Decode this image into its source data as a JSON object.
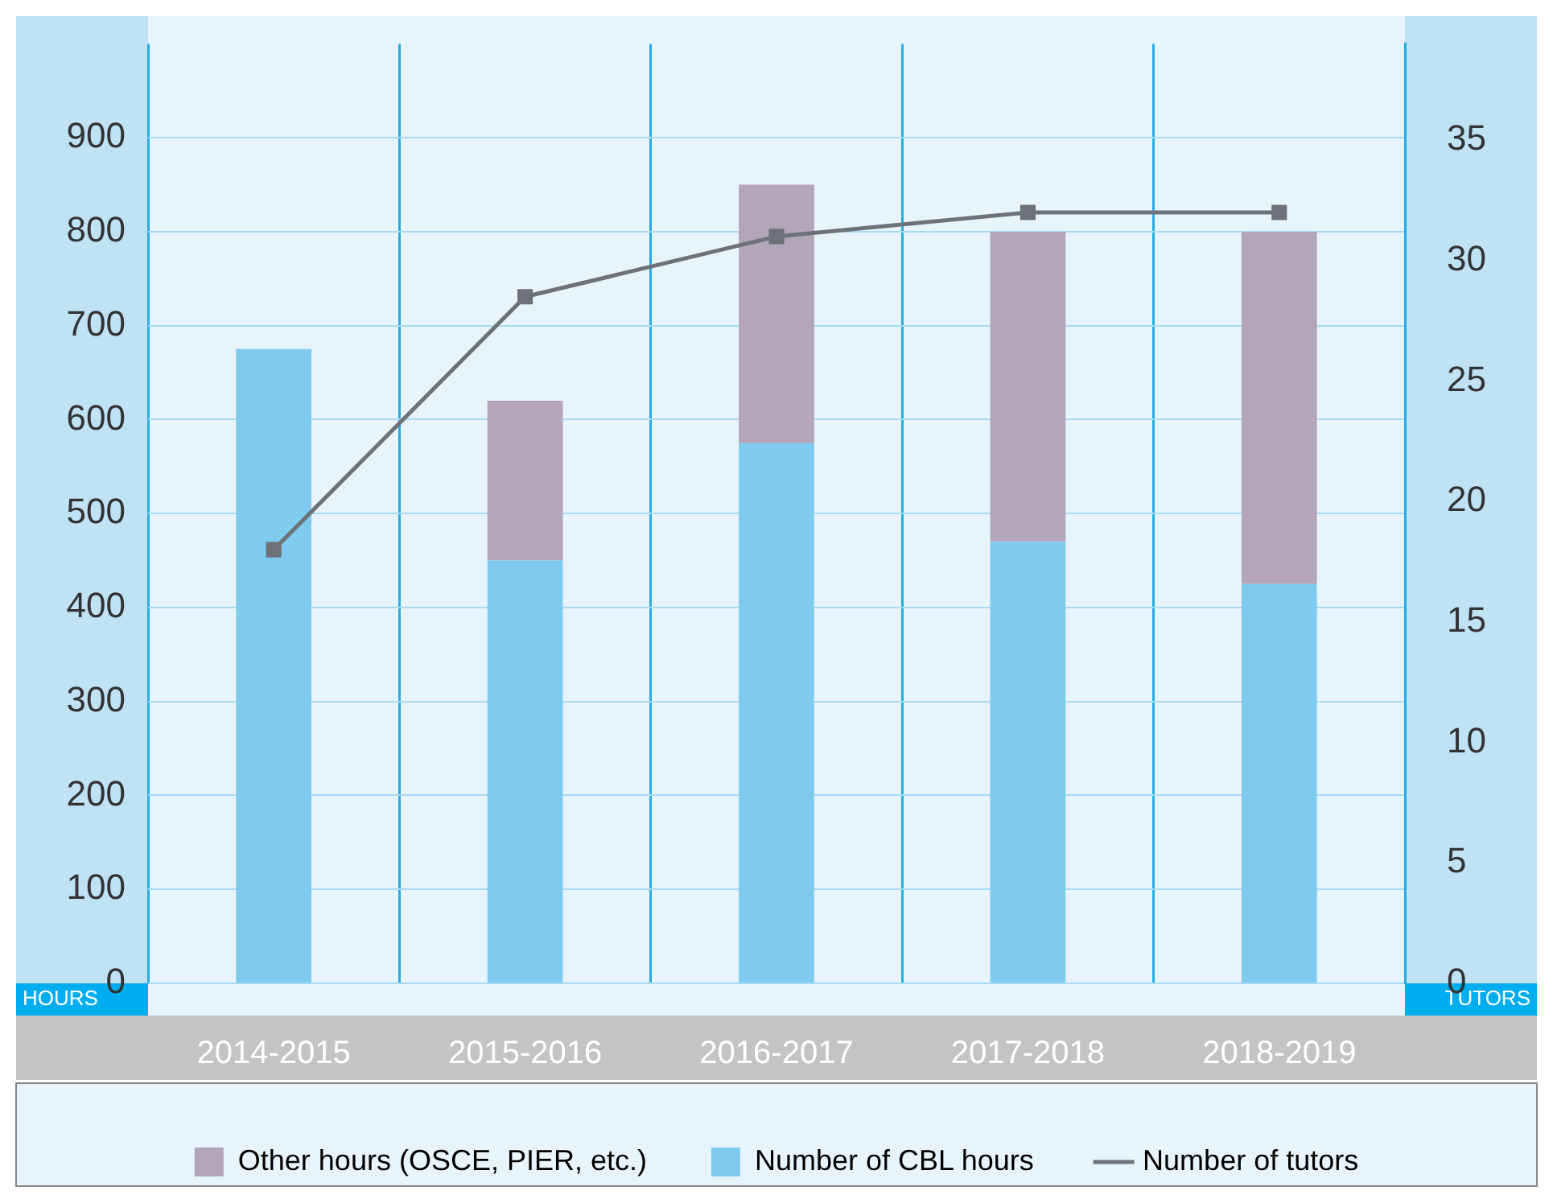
{
  "chart_data": {
    "type": "bar",
    "stacked": true,
    "categories": [
      "2014-2015",
      "2015-2016",
      "2016-2017",
      "2017-2018",
      "2018-2019"
    ],
    "series": [
      {
        "name": "Number of CBL hours",
        "color": "#7fcbf0",
        "values": [
          675,
          450,
          575,
          470,
          425
        ]
      },
      {
        "name": "Other hours (OSCE, PIER, etc.)",
        "color": "#b2a6b8",
        "values": [
          null,
          170,
          275,
          330,
          375
        ]
      },
      {
        "name": "Number of tutors",
        "type": "line",
        "axis": "y2",
        "color": "#6d7278",
        "marker": "square",
        "values": [
          18,
          28.5,
          31,
          32,
          32
        ]
      }
    ],
    "ylabel": "HOURS",
    "y2label": "TUTORS",
    "ylim": [
      0,
      1000
    ],
    "yticks": [
      0,
      100,
      200,
      300,
      400,
      500,
      600,
      700,
      800,
      900
    ],
    "y2lim": [
      0,
      39
    ],
    "y2ticks": [
      0,
      5,
      10,
      15,
      20,
      25,
      30,
      35
    ],
    "grid": "y",
    "legend": "bottom"
  }
}
